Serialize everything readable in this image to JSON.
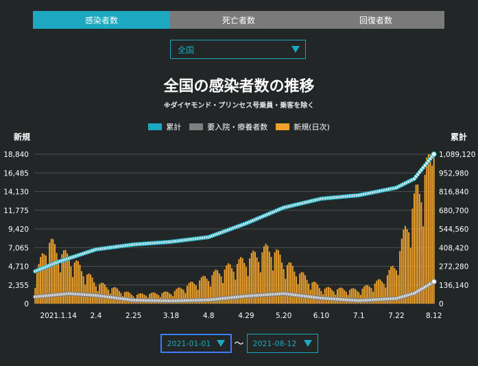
{
  "tabs": [
    {
      "label": "感染者数",
      "active": true
    },
    {
      "label": "死亡者数",
      "active": false
    },
    {
      "label": "回復者数",
      "active": false
    }
  ],
  "region_select": {
    "value": "全国"
  },
  "date_range": {
    "start": "2021-01-01",
    "end": "2021-08-12",
    "separator": "〜"
  },
  "colors": {
    "accent": "#1ba8c0",
    "cumulative": "#1ba8c0",
    "inpatient": "#7f7f7f",
    "daily": "#f0a22a",
    "background": "#232627"
  },
  "chart_data": {
    "type": "bar",
    "title": "全国の感染者数の推移",
    "subtitle": "※ダイヤモンド・プリンセス号乗員・乗客を除く",
    "left_axis_title": "新規",
    "right_axis_title": "累計",
    "legend": [
      "累計",
      "要入院・療養者数",
      "新規(日次)"
    ],
    "legend_placement": "top-center",
    "grid": true,
    "y_left": {
      "ylim": [
        0,
        18840
      ],
      "ticks": [
        "0",
        "2,355",
        "4,710",
        "7,065",
        "9,420",
        "11,775",
        "14,130",
        "16,485",
        "18,840"
      ]
    },
    "y_right": {
      "ylim": [
        0,
        1089120
      ],
      "ticks": [
        "0",
        "136,140",
        "272,280",
        "408,420",
        "544,560",
        "680,700",
        "816,840",
        "952,980",
        "1,089,120"
      ]
    },
    "x": {
      "start": "2021-01-01",
      "end": "2021-08-12",
      "ticks": [
        "2021.1.14",
        "2.4",
        "2.25",
        "3.18",
        "4.8",
        "4.29",
        "5.20",
        "6.10",
        "7.1",
        "7.22",
        "8.12"
      ]
    },
    "series": [
      {
        "name": "累計",
        "axis": "right",
        "render": "line",
        "anchors": [
          [
            "2021-01-01",
            236000
          ],
          [
            "2021-01-14",
            305000
          ],
          [
            "2021-02-04",
            395000
          ],
          [
            "2021-02-25",
            431000
          ],
          [
            "2021-03-18",
            451000
          ],
          [
            "2021-04-08",
            485000
          ],
          [
            "2021-04-29",
            585000
          ],
          [
            "2021-05-20",
            700000
          ],
          [
            "2021-06-10",
            765000
          ],
          [
            "2021-07-01",
            790000
          ],
          [
            "2021-07-22",
            845000
          ],
          [
            "2021-08-01",
            910000
          ],
          [
            "2021-08-12",
            1089120
          ]
        ]
      },
      {
        "name": "要入院・療養者数",
        "axis": "right",
        "render": "line",
        "anchors": [
          [
            "2021-01-01",
            50000
          ],
          [
            "2021-01-20",
            73000
          ],
          [
            "2021-02-04",
            60000
          ],
          [
            "2021-02-25",
            25000
          ],
          [
            "2021-03-18",
            20000
          ],
          [
            "2021-04-08",
            27000
          ],
          [
            "2021-04-29",
            55000
          ],
          [
            "2021-05-20",
            73000
          ],
          [
            "2021-06-10",
            40000
          ],
          [
            "2021-07-01",
            22000
          ],
          [
            "2021-07-22",
            38000
          ],
          [
            "2021-08-01",
            75000
          ],
          [
            "2021-08-12",
            160000
          ]
        ]
      },
      {
        "name": "新規(日次)",
        "axis": "left",
        "render": "bar",
        "anchors": [
          [
            "2021-01-01",
            3200
          ],
          [
            "2021-01-08",
            7900
          ],
          [
            "2021-01-14",
            6500
          ],
          [
            "2021-01-21",
            5600
          ],
          [
            "2021-02-04",
            2600
          ],
          [
            "2021-02-25",
            1100
          ],
          [
            "2021-03-18",
            1400
          ],
          [
            "2021-04-08",
            3400
          ],
          [
            "2021-04-29",
            5500
          ],
          [
            "2021-05-13",
            7000
          ],
          [
            "2021-05-20",
            5200
          ],
          [
            "2021-06-10",
            1900
          ],
          [
            "2021-07-01",
            1700
          ],
          [
            "2021-07-15",
            3000
          ],
          [
            "2021-07-22",
            5000
          ],
          [
            "2021-07-29",
            10700
          ],
          [
            "2021-08-05",
            15200
          ],
          [
            "2021-08-12",
            18840
          ]
        ]
      }
    ]
  }
}
